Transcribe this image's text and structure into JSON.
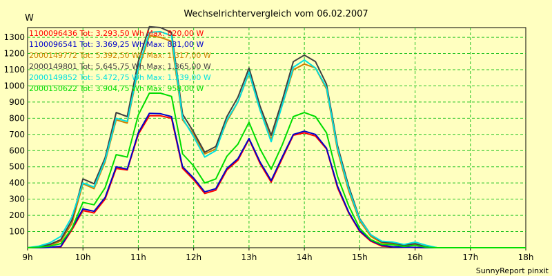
{
  "chart_data": {
    "type": "line",
    "title": "Wechselrichtervergleich vom 06.02.2007",
    "y_unit": "W",
    "footer": "SunnyReport pinxit",
    "grid": true,
    "xlim": [
      9,
      18
    ],
    "ylim": [
      0,
      1360
    ],
    "x_ticks": [
      9,
      10,
      11,
      12,
      13,
      14,
      15,
      16,
      17,
      18
    ],
    "x_tick_labels": [
      "9h",
      "10h",
      "11h",
      "12h",
      "13h",
      "14h",
      "15h",
      "16h",
      "17h",
      "18h"
    ],
    "y_ticks": [
      100,
      200,
      300,
      400,
      500,
      600,
      700,
      800,
      900,
      1000,
      1100,
      1200,
      1300
    ],
    "y_tick_labels": [
      "100",
      "200",
      "300",
      "400",
      "500",
      "600",
      "700",
      "800",
      "900",
      "1000",
      "1100",
      "1200",
      "1300"
    ],
    "x": [
      9.0,
      9.2,
      9.4,
      9.6,
      9.8,
      10.0,
      10.2,
      10.4,
      10.6,
      10.8,
      11.0,
      11.2,
      11.4,
      11.6,
      11.8,
      12.0,
      12.2,
      12.4,
      12.6,
      12.8,
      13.0,
      13.2,
      13.4,
      13.6,
      13.8,
      14.0,
      14.2,
      14.4,
      14.6,
      14.8,
      15.0,
      15.2,
      15.4,
      15.6,
      15.8,
      16.0,
      16.2,
      16.4,
      16.6,
      16.8,
      17.0,
      17.2,
      17.4,
      17.6,
      17.8,
      18.0
    ],
    "series": [
      {
        "legend": "1100096436 Tot: 3.293,50 Wh Max: 820,00 W",
        "color": "#ff0000",
        "values": [
          0,
          0,
          2,
          5,
          110,
          230,
          215,
          300,
          490,
          480,
          700,
          815,
          815,
          800,
          490,
          420,
          335,
          355,
          480,
          540,
          670,
          520,
          405,
          550,
          695,
          710,
          690,
          610,
          370,
          215,
          100,
          40,
          10,
          5,
          3,
          1,
          0,
          0,
          0,
          0,
          0,
          0,
          0,
          0,
          0,
          0
        ]
      },
      {
        "legend": "1100096541 Tot: 3.369,25 Wh Max: 831,00 W",
        "color": "#0000cc",
        "values": [
          0,
          0,
          2,
          8,
          120,
          240,
          225,
          310,
          500,
          485,
          710,
          830,
          828,
          810,
          500,
          430,
          345,
          365,
          490,
          550,
          675,
          530,
          415,
          560,
          700,
          720,
          700,
          615,
          380,
          220,
          105,
          45,
          15,
          5,
          3,
          2,
          0,
          0,
          0,
          0,
          0,
          0,
          0,
          0,
          0,
          0
        ]
      },
      {
        "legend": "2000149772 Tot: 5.392,50 Wh Max: 1.317,00 W",
        "color": "#d08000",
        "values": [
          0,
          5,
          15,
          40,
          150,
          395,
          365,
          530,
          790,
          770,
          1100,
          1310,
          1300,
          1275,
          790,
          700,
          580,
          610,
          780,
          900,
          1080,
          850,
          670,
          880,
          1100,
          1135,
          1110,
          980,
          600,
          350,
          165,
          70,
          30,
          25,
          10,
          20,
          5,
          0,
          0,
          0,
          0,
          0,
          0,
          0,
          0,
          0
        ]
      },
      {
        "legend": "2000149801 Tot: 5.645,75 Wh Max: 1.365,00 W",
        "color": "#404040",
        "values": [
          0,
          5,
          20,
          50,
          170,
          425,
          395,
          555,
          835,
          810,
          1150,
          1365,
          1360,
          1330,
          825,
          715,
          590,
          625,
          810,
          930,
          1110,
          875,
          695,
          910,
          1150,
          1190,
          1150,
          1010,
          630,
          380,
          180,
          80,
          35,
          30,
          15,
          25,
          5,
          0,
          0,
          0,
          0,
          0,
          0,
          0,
          0,
          0
        ]
      },
      {
        "legend": "2000149852 Tot: 5.472,75 Wh Max: 1.339,00 W",
        "color": "#00e0e0",
        "values": [
          0,
          10,
          30,
          70,
          190,
          400,
          375,
          540,
          800,
          780,
          1110,
          1330,
          1335,
          1310,
          800,
          685,
          560,
          600,
          790,
          900,
          1085,
          850,
          655,
          880,
          1115,
          1160,
          1110,
          990,
          615,
          365,
          175,
          80,
          40,
          35,
          20,
          35,
          15,
          0,
          0,
          0,
          0,
          0,
          0,
          0,
          0,
          0
        ]
      },
      {
        "legend": "2000150622 Tot: 3.904,75 Wh Max: 958,00 W",
        "color": "#00dd00",
        "values": [
          0,
          3,
          10,
          25,
          120,
          280,
          265,
          370,
          575,
          560,
          820,
          955,
          955,
          935,
          580,
          505,
          400,
          425,
          565,
          640,
          775,
          610,
          485,
          635,
          810,
          835,
          810,
          710,
          440,
          260,
          120,
          50,
          20,
          18,
          8,
          15,
          3,
          0,
          0,
          0,
          0,
          0,
          0,
          0,
          0,
          0
        ]
      }
    ]
  }
}
